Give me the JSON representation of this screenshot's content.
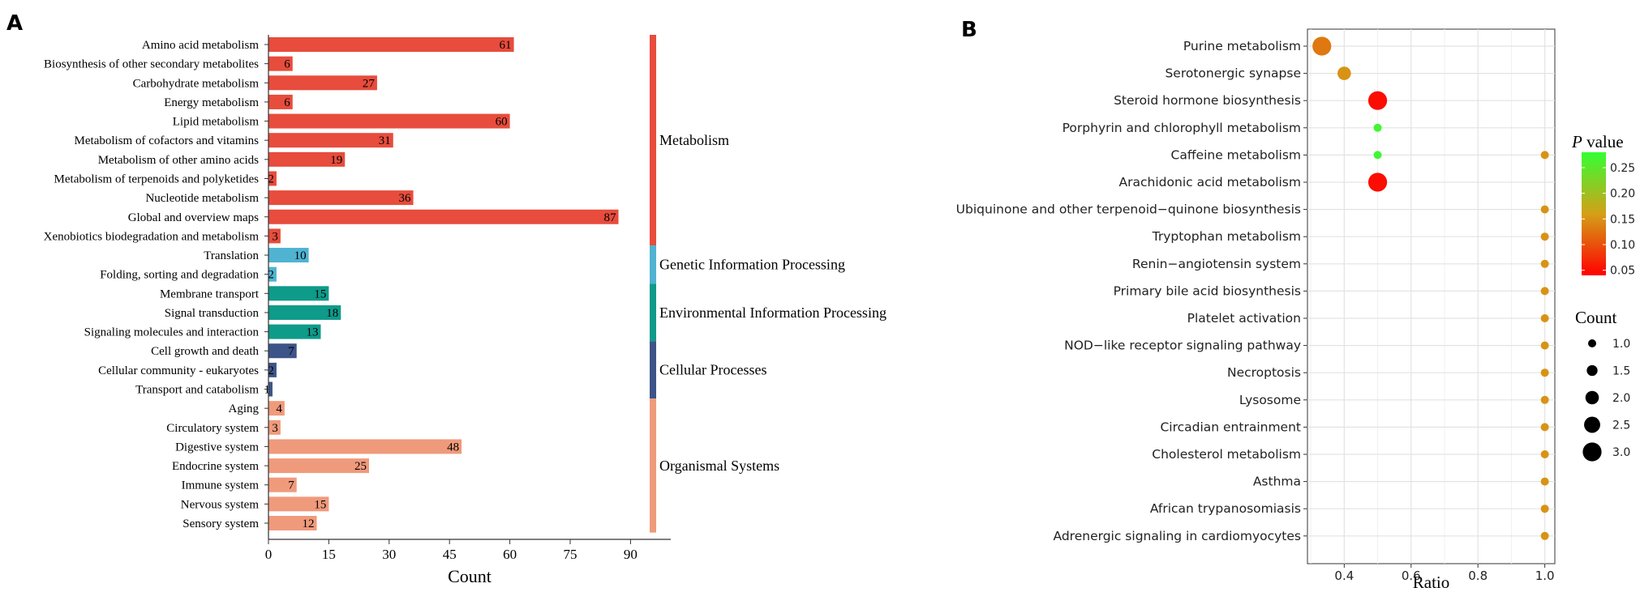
{
  "panel_labels": {
    "a": "A",
    "b": "B"
  },
  "chart_data": [
    {
      "type": "bar",
      "orientation": "horizontal",
      "panel": "A",
      "xlabel": "Count",
      "ylabel": "",
      "xlim": [
        0,
        100
      ],
      "xticks": [
        0,
        15,
        30,
        45,
        60,
        75,
        90
      ],
      "grid": false,
      "categories": [
        "Amino acid metabolism",
        "Biosynthesis of other secondary metabolites",
        "Carbohydrate metabolism",
        "Energy metabolism",
        "Lipid metabolism",
        "Metabolism of cofactors and vitamins",
        "Metabolism of other amino acids",
        "Metabolism of terpenoids and polyketides",
        "Nucleotide metabolism",
        "Global and overview maps",
        "Xenobiotics biodegradation and metabolism",
        "Translation",
        "Folding, sorting and degradation",
        "Membrane transport",
        "Signal transduction",
        "Signaling molecules and interaction",
        "Cell growth and death",
        "Cellular community - eukaryotes",
        "Transport and catabolism",
        "Aging",
        "Circulatory system",
        "Digestive system",
        "Endocrine system",
        "Immune system",
        "Nervous system",
        "Sensory system"
      ],
      "values": [
        61,
        6,
        27,
        6,
        60,
        31,
        19,
        2,
        36,
        87,
        3,
        10,
        2,
        15,
        18,
        13,
        7,
        2,
        1,
        4,
        3,
        48,
        25,
        7,
        15,
        12
      ],
      "data_labels": [
        "61",
        "6",
        "27",
        "6",
        "60",
        "31",
        "19",
        "2",
        "36",
        "87",
        "3",
        "10",
        "2",
        "15",
        "18",
        "13",
        "7",
        "2",
        "1",
        "4",
        "3",
        "48",
        "25",
        "7",
        "15",
        "12"
      ],
      "groups": [
        {
          "name": "Metabolism",
          "start": 0,
          "end": 10,
          "color": "#e74c3c"
        },
        {
          "name": "Genetic Information Processing",
          "start": 11,
          "end": 12,
          "color": "#4fb3d1"
        },
        {
          "name": "Environmental Information Processing",
          "start": 13,
          "end": 15,
          "color": "#0e9b8a"
        },
        {
          "name": "Cellular Processes",
          "start": 16,
          "end": 18,
          "color": "#3d5488"
        },
        {
          "name": "Organismal Systems",
          "start": 19,
          "end": 25,
          "color": "#f09a7c"
        }
      ]
    },
    {
      "type": "scatter",
      "subtype": "bubble",
      "panel": "B",
      "xlabel": "Ratio",
      "ylabel": "",
      "xlim": [
        0.29,
        1.03
      ],
      "xticks": [
        0.4,
        0.6,
        0.8,
        1.0
      ],
      "xtick_labels": [
        "0.4",
        "0.6",
        "0.8",
        "1.0"
      ],
      "grid": true,
      "categories": [
        "Purine metabolism",
        "Serotonergic synapse",
        "Steroid hormone biosynthesis",
        "Porphyrin and chlorophyll metabolism",
        "Caffeine metabolism",
        "Arachidonic acid metabolism",
        "Ubiquinone and other terpenoid−quinone biosynthesis",
        "Tryptophan metabolism",
        "Renin−angiotensin system",
        "Primary bile acid biosynthesis",
        "Platelet activation",
        "NOD−like receptor signaling pathway",
        "Necroptosis",
        "Lysosome",
        "Circadian entrainment",
        "Cholesterol metabolism",
        "Asthma",
        "African trypanosomiasis",
        "Adrenergic signaling in cardiomyocytes"
      ],
      "points": [
        {
          "category": "Purine metabolism",
          "x": 0.333,
          "count": 3,
          "p": 0.13
        },
        {
          "category": "Serotonergic synapse",
          "x": 0.4,
          "count": 2,
          "p": 0.15
        },
        {
          "category": "Steroid hormone biosynthesis",
          "x": 0.5,
          "count": 3,
          "p": 0.05
        },
        {
          "category": "Porphyrin and chlorophyll metabolism",
          "x": 0.5,
          "count": 1,
          "p": 0.27
        },
        {
          "category": "Caffeine metabolism",
          "x": 0.5,
          "count": 1,
          "p": 0.27
        },
        {
          "category": "Caffeine metabolism",
          "x": 1.0,
          "count": 1,
          "p": 0.15
        },
        {
          "category": "Arachidonic acid metabolism",
          "x": 0.5,
          "count": 3,
          "p": 0.05
        },
        {
          "category": "Ubiquinone and other terpenoid−quinone biosynthesis",
          "x": 1.0,
          "count": 1,
          "p": 0.15
        },
        {
          "category": "Tryptophan metabolism",
          "x": 1.0,
          "count": 1,
          "p": 0.15
        },
        {
          "category": "Renin−angiotensin system",
          "x": 1.0,
          "count": 1,
          "p": 0.15
        },
        {
          "category": "Primary bile acid biosynthesis",
          "x": 1.0,
          "count": 1,
          "p": 0.15
        },
        {
          "category": "Platelet activation",
          "x": 1.0,
          "count": 1,
          "p": 0.15
        },
        {
          "category": "NOD−like receptor signaling pathway",
          "x": 1.0,
          "count": 1,
          "p": 0.15
        },
        {
          "category": "Necroptosis",
          "x": 1.0,
          "count": 1,
          "p": 0.15
        },
        {
          "category": "Lysosome",
          "x": 1.0,
          "count": 1,
          "p": 0.15
        },
        {
          "category": "Circadian entrainment",
          "x": 1.0,
          "count": 1,
          "p": 0.15
        },
        {
          "category": "Cholesterol metabolism",
          "x": 1.0,
          "count": 1,
          "p": 0.15
        },
        {
          "category": "Asthma",
          "x": 1.0,
          "count": 1,
          "p": 0.15
        },
        {
          "category": "African trypanosomiasis",
          "x": 1.0,
          "count": 1,
          "p": 0.15
        },
        {
          "category": "Adrenergic signaling in cardiomyocytes",
          "x": 1.0,
          "count": 1,
          "p": 0.15
        }
      ],
      "color_legend": {
        "title_italic": "P",
        "title_rest": " value",
        "range": [
          0.04,
          0.28
        ],
        "ticks": [
          0.05,
          0.1,
          0.15,
          0.2,
          0.25
        ],
        "tick_labels": [
          "0.05",
          "0.10",
          "0.15",
          "0.20",
          "0.25"
        ],
        "colors": [
          "#ff0000",
          "#d4a017",
          "#33ff33"
        ]
      },
      "size_legend": {
        "title": "Count",
        "values": [
          1.0,
          1.5,
          2.0,
          2.5,
          3.0
        ],
        "labels": [
          "1.0",
          "1.5",
          "2.0",
          "2.5",
          "3.0"
        ],
        "color": "#000000"
      },
      "legend_placement": "right"
    }
  ]
}
